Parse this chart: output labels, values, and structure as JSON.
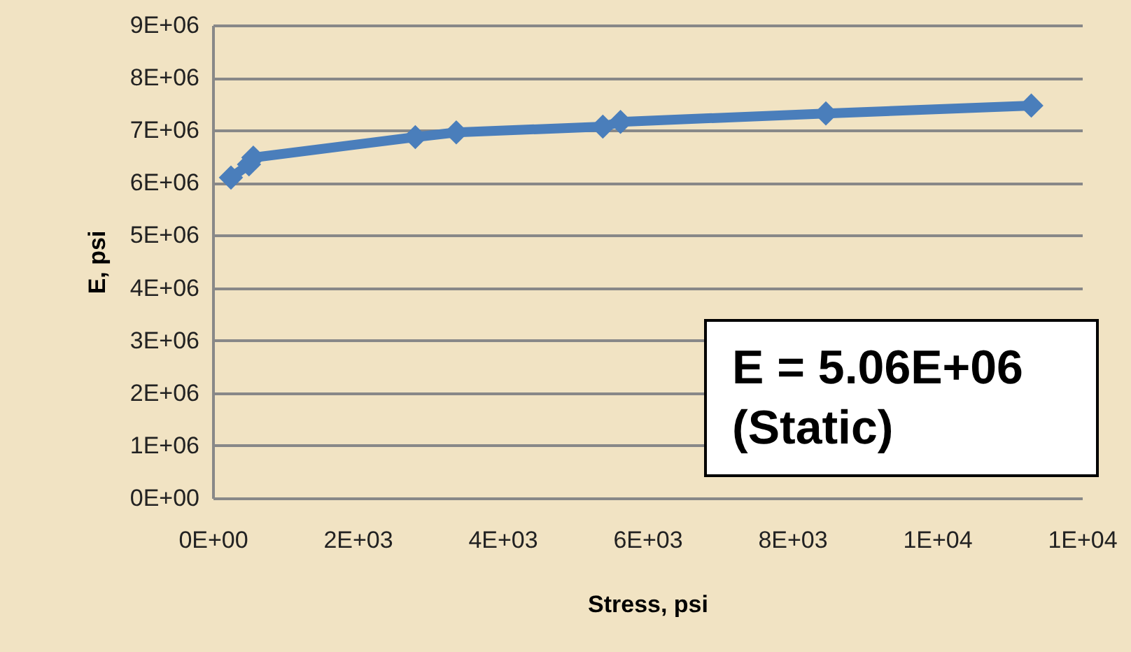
{
  "chart_data": {
    "type": "line",
    "xlabel": "Stress, psi",
    "ylabel": "E, psi",
    "x": [
      251,
      500,
      560,
      2796,
      3362,
      5385,
      5629,
      8464,
      11300
    ],
    "series": [
      {
        "color": "#4a7ebb",
        "values": [
          6100000,
          6350000,
          6480000,
          6870000,
          6960000,
          7070000,
          7160000,
          7320000,
          7470000
        ]
      }
    ],
    "xlim": [
      0,
      12000
    ],
    "xticks": [
      {
        "value": 0,
        "label": "0E+00"
      },
      {
        "value": 2000,
        "label": "2E+03"
      },
      {
        "value": 4000,
        "label": "4E+03"
      },
      {
        "value": 6000,
        "label": "6E+03"
      },
      {
        "value": 8000,
        "label": "8E+03"
      },
      {
        "value": 10000,
        "label": "1E+04"
      },
      {
        "value": 12000,
        "label": "1E+04"
      }
    ],
    "ylim": [
      0,
      9000000
    ],
    "yticks": [
      {
        "value": 0,
        "label": "0E+00"
      },
      {
        "value": 1000000,
        "label": "1E+06"
      },
      {
        "value": 2000000,
        "label": "2E+06"
      },
      {
        "value": 3000000,
        "label": "3E+06"
      },
      {
        "value": 4000000,
        "label": "4E+06"
      },
      {
        "value": 5000000,
        "label": "5E+06"
      },
      {
        "value": 6000000,
        "label": "6E+06"
      },
      {
        "value": 7000000,
        "label": "7E+06"
      },
      {
        "value": 8000000,
        "label": "8E+06"
      },
      {
        "value": 9000000,
        "label": "9E+06"
      }
    ],
    "grid": "y",
    "marker": "diamond",
    "line_style": "solid",
    "annotations": [
      "E = 5.06E+06 (Static)"
    ]
  }
}
